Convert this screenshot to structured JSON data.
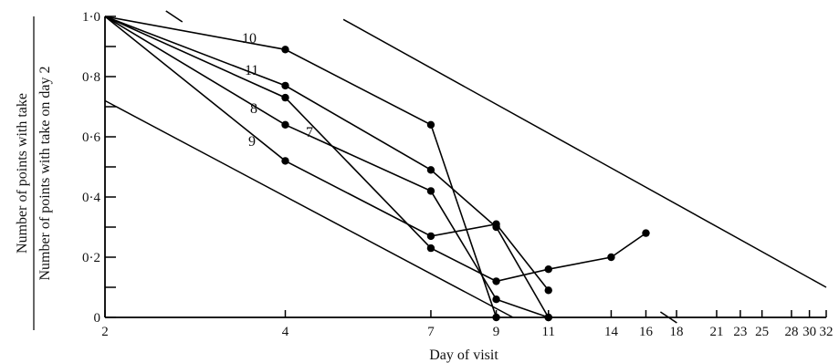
{
  "chart_data": {
    "type": "line",
    "title": "",
    "xlabel": "Day of visit",
    "ylabel_numerator": "Number of points with take",
    "ylabel_denominator": "Number of points with take on day 2",
    "x_scale": "log",
    "xlim": [
      2,
      32
    ],
    "ylim": [
      0,
      1.0
    ],
    "x_ticks": [
      2,
      4,
      7,
      9,
      11,
      14,
      16,
      18,
      21,
      23,
      25,
      28,
      30,
      32
    ],
    "x_tick_labels": [
      "2",
      "4",
      "7",
      "9",
      "11",
      "14",
      "16",
      "18",
      "21",
      "23",
      "25",
      "28",
      "30",
      "32"
    ],
    "y_ticks": [
      0,
      0.1,
      0.2,
      0.3,
      0.4,
      0.5,
      0.6,
      0.7,
      0.8,
      0.9,
      1.0
    ],
    "y_tick_labels": [
      "0",
      "",
      "0·2",
      "",
      "0·4",
      "",
      "0·6",
      "",
      "0·8",
      "",
      "1·0"
    ],
    "grid": false,
    "series": [
      {
        "name": "10",
        "x": [
          2,
          4,
          7,
          9
        ],
        "y": [
          1.0,
          0.89,
          0.64,
          0.0
        ]
      },
      {
        "name": "11",
        "x": [
          2,
          4,
          7,
          9,
          11
        ],
        "y": [
          1.0,
          0.77,
          0.49,
          0.3,
          0.0
        ]
      },
      {
        "name": "8",
        "x": [
          2,
          4,
          7,
          9,
          11
        ],
        "y": [
          1.0,
          0.64,
          0.42,
          0.06,
          0.0
        ]
      },
      {
        "name": "9",
        "x": [
          2,
          4,
          7,
          9,
          11
        ],
        "y": [
          1.0,
          0.52,
          0.27,
          0.31,
          0.09
        ]
      },
      {
        "name": "7",
        "x": [
          2,
          4,
          7,
          9,
          11,
          14,
          16
        ],
        "y": [
          1.0,
          0.73,
          0.23,
          0.12,
          0.16,
          0.2,
          0.28
        ]
      }
    ],
    "reference_lines": [
      {
        "x": [
          2,
          9.6
        ],
        "y": [
          0.72,
          0.0
        ]
      },
      {
        "x": [
          5,
          32
        ],
        "y": [
          0.99,
          0.1
        ]
      }
    ],
    "axis_breaks": [
      {
        "axis": "top",
        "x": 2.6
      },
      {
        "axis": "bottom",
        "x": 17.4
      }
    ]
  }
}
